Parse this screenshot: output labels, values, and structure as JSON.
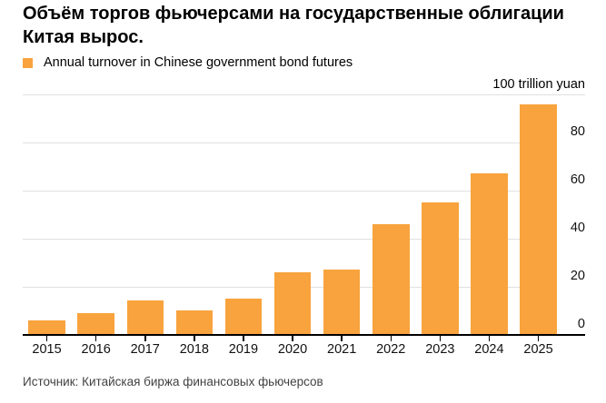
{
  "title": "Объём торгов фьючерсами на государственные облигации\nКитая вырос.",
  "legend": {
    "label": "Annual turnover in Chinese government bond futures",
    "color": "#F8A33D"
  },
  "axis_unit_label": "100 trillion yuan",
  "source": "Источник: Китайская биржа финансовых фьючерсов",
  "colors": {
    "bar": "#F8A33D",
    "gridline": "#E0E0E0",
    "axis": "#000000",
    "tick": "#000000"
  },
  "chart_data": {
    "type": "bar",
    "title": "Объём торгов фьючерсами на государственные облигации Китая вырос.",
    "series_name": "Annual turnover in Chinese government bond futures",
    "categories": [
      "2015",
      "2016",
      "2017",
      "2018",
      "2019",
      "2020",
      "2021",
      "2022",
      "2023",
      "2024",
      "2025"
    ],
    "values": [
      6,
      9,
      14,
      10,
      15,
      26,
      27,
      46,
      55,
      67,
      96
    ],
    "xlabel": "",
    "ylabel": "100 trillion yuan",
    "ylim": [
      0,
      100
    ],
    "yticks": [
      0,
      20,
      40,
      60,
      80
    ],
    "top_rule_value": 100,
    "grid": true,
    "ytick_side": "right",
    "legend_position": "top-left",
    "bar_color": "#F8A33D",
    "source": "Источник: Китайская биржа финансовых фьючерсов"
  }
}
